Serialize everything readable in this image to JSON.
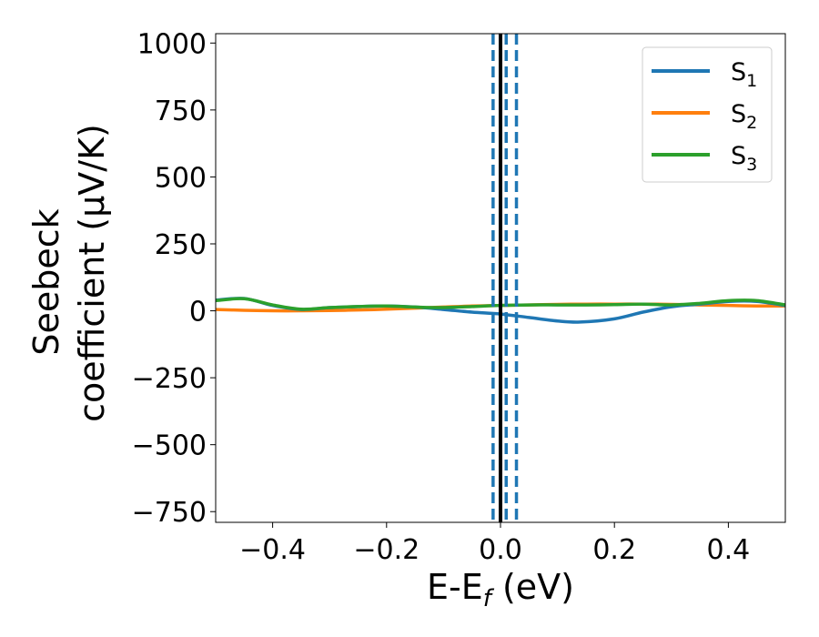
{
  "chart_data": {
    "type": "line",
    "xlabel": "E-E",
    "xlabel_sub": "f",
    "xlabel_unit": " (eV)",
    "ylabel_line1": "Seebeck",
    "ylabel_line2": "coefficient  (μV/K)",
    "xlim": [
      -0.5,
      0.5
    ],
    "ylim": [
      -790,
      1035
    ],
    "xticks": [
      -0.4,
      -0.2,
      0.0,
      0.2,
      0.4
    ],
    "xtick_labels": [
      "−0.4",
      "−0.2",
      "0.0",
      "0.2",
      "0.4"
    ],
    "yticks": [
      -750,
      -500,
      -250,
      0,
      250,
      500,
      750,
      1000
    ],
    "ytick_labels": [
      "−750",
      "−500",
      "−250",
      "0",
      "250",
      "500",
      "750",
      "1000"
    ],
    "grid": false,
    "legend_position": "top-right",
    "series": [
      {
        "name": "S",
        "sub": "1",
        "color": "#1f77b4",
        "x": [
          -0.5,
          -0.45,
          -0.4,
          -0.35,
          -0.3,
          -0.25,
          -0.2,
          -0.15,
          -0.1,
          -0.05,
          0.0,
          0.05,
          0.1,
          0.14,
          0.2,
          0.25,
          0.3,
          0.35,
          0.4,
          0.45,
          0.5
        ],
        "y": [
          40,
          46,
          20,
          5,
          12,
          16,
          18,
          14,
          5,
          -5,
          -12,
          -25,
          -38,
          -42,
          -30,
          -5,
          15,
          25,
          35,
          35,
          20
        ]
      },
      {
        "name": "S",
        "sub": "2",
        "color": "#ff7f0e",
        "x": [
          -0.5,
          -0.45,
          -0.4,
          -0.35,
          -0.3,
          -0.25,
          -0.2,
          -0.15,
          -0.1,
          -0.05,
          0.0,
          0.05,
          0.1,
          0.15,
          0.2,
          0.25,
          0.3,
          0.35,
          0.4,
          0.45,
          0.5
        ],
        "y": [
          5,
          2,
          0,
          0,
          1,
          3,
          6,
          10,
          14,
          18,
          20,
          22,
          24,
          25,
          25,
          25,
          24,
          22,
          20,
          18,
          18
        ]
      },
      {
        "name": "S",
        "sub": "3",
        "color": "#2ca02c",
        "x": [
          -0.5,
          -0.45,
          -0.4,
          -0.35,
          -0.3,
          -0.25,
          -0.2,
          -0.15,
          -0.1,
          -0.05,
          0.0,
          0.05,
          0.1,
          0.15,
          0.2,
          0.25,
          0.3,
          0.35,
          0.4,
          0.45,
          0.5
        ],
        "y": [
          38,
          45,
          22,
          6,
          12,
          16,
          18,
          14,
          12,
          16,
          20,
          22,
          22,
          22,
          23,
          25,
          22,
          28,
          38,
          38,
          22
        ]
      }
    ],
    "vlines": [
      {
        "x": 0.0,
        "color": "#000000",
        "style": "solid"
      },
      {
        "x": -0.013,
        "color": "#1f77b4",
        "style": "dashed"
      },
      {
        "x": 0.01,
        "color": "#1f77b4",
        "style": "dashed"
      },
      {
        "x": 0.028,
        "color": "#1f77b4",
        "style": "dashed"
      }
    ]
  }
}
